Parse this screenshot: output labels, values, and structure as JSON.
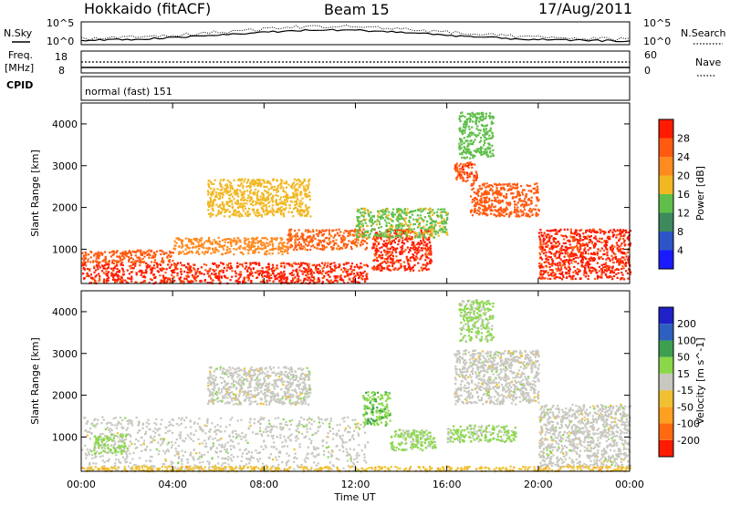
{
  "header": {
    "radar": "Hokkaido (fitACF)",
    "beam": "Beam 15",
    "date": "17/Aug/2011"
  },
  "top_panels": {
    "nsky_label": "N.Sky",
    "nsearch_label": "N.Search",
    "nsky_ticks": [
      "10^5",
      "10^0"
    ],
    "nsearch_ticks": [
      "10^5",
      "10^0"
    ],
    "freq_label": "Freq.",
    "freq_unit": "[MHz]",
    "freq_ticks": [
      "18",
      "8"
    ],
    "nave_label": "Nave",
    "nave_ticks": [
      "60",
      "0"
    ],
    "cpid_label": "CPID",
    "cpid_value": "normal (fast) 151"
  },
  "colors": {
    "power_scale": [
      "#1a1aff",
      "#2d55c8",
      "#3d8a5c",
      "#5fbf4a",
      "#f2b824",
      "#ff8a1f",
      "#ff5a10",
      "#ff1a00"
    ],
    "velocity_scale": [
      "#ff1a00",
      "#ff6a10",
      "#ffa020",
      "#f0c030",
      "#c8c8c0",
      "#8ad84a",
      "#3da050",
      "#2d60c0",
      "#2020c8"
    ]
  },
  "chart_data": [
    {
      "type": "heatmap",
      "name": "power",
      "ylabel": "Slant Range [km]",
      "xlabel": "Time UT",
      "colorbar_label": "Power [dB]",
      "colorbar_ticks": [
        "28",
        "24",
        "20",
        "16",
        "12",
        "8",
        "4"
      ],
      "colorbar_range": [
        0,
        32
      ],
      "x_ticks": [
        "00:00",
        "04:00",
        "08:00",
        "12:00",
        "16:00",
        "20:00",
        "00:00"
      ],
      "x_range_hours": [
        0,
        24
      ],
      "y_ticks": [
        "4000",
        "3000",
        "2000",
        "1000"
      ],
      "y_range_km": [
        180,
        4500
      ],
      "echo_bands": [
        {
          "t0": 0.0,
          "t1": 12.5,
          "r0": 200,
          "r1": 700,
          "level": 29
        },
        {
          "t0": 0.0,
          "t1": 4.0,
          "r0": 700,
          "r1": 1000,
          "level": 26
        },
        {
          "t0": 4.0,
          "t1": 9.0,
          "r0": 900,
          "r1": 1300,
          "level": 22
        },
        {
          "t0": 9.0,
          "t1": 12.5,
          "r0": 1000,
          "r1": 1500,
          "level": 25
        },
        {
          "t0": 12.7,
          "t1": 15.3,
          "r0": 500,
          "r1": 1500,
          "level": 29
        },
        {
          "t0": 16.3,
          "t1": 17.3,
          "r0": 2600,
          "r1": 3100,
          "level": 27
        },
        {
          "t0": 17.0,
          "t1": 20.0,
          "r0": 1800,
          "r1": 2600,
          "level": 26
        },
        {
          "t0": 20.0,
          "t1": 24.0,
          "r0": 300,
          "r1": 1500,
          "level": 29
        },
        {
          "t0": 5.5,
          "t1": 10.0,
          "r0": 1800,
          "r1": 2700,
          "level": 18
        },
        {
          "t0": 12.0,
          "t1": 16.0,
          "r0": 1300,
          "r1": 2000,
          "level": 15
        },
        {
          "t0": 16.5,
          "t1": 18.0,
          "r0": 3200,
          "r1": 4300,
          "level": 14
        }
      ]
    },
    {
      "type": "heatmap",
      "name": "velocity",
      "ylabel": "Slant Range [km]",
      "xlabel": "Time UT",
      "colorbar_label": "Velocity [m s^-1]",
      "colorbar_ticks": [
        "200",
        "100",
        "50",
        "15",
        "-15",
        "-50",
        "-100",
        "-200"
      ],
      "colorbar_range": [
        -250,
        250
      ],
      "x_ticks": [
        "00:00",
        "04:00",
        "08:00",
        "12:00",
        "16:00",
        "20:00",
        "00:00"
      ],
      "x_range_hours": [
        0,
        24
      ],
      "y_ticks": [
        "4000",
        "3000",
        "2000",
        "1000"
      ],
      "y_range_km": [
        180,
        4500
      ],
      "echo_bands": [
        {
          "t0": 0.0,
          "t1": 12.5,
          "r0": 200,
          "r1": 1500,
          "level": 0
        },
        {
          "t0": 0.5,
          "t1": 2.0,
          "r0": 600,
          "r1": 1100,
          "level": 40
        },
        {
          "t0": 5.5,
          "t1": 10.0,
          "r0": 1800,
          "r1": 2700,
          "level": 0
        },
        {
          "t0": 12.3,
          "t1": 13.5,
          "r0": 1300,
          "r1": 2100,
          "level": 70
        },
        {
          "t0": 13.5,
          "t1": 15.5,
          "r0": 700,
          "r1": 1200,
          "level": 45
        },
        {
          "t0": 16.0,
          "t1": 19.0,
          "r0": 900,
          "r1": 1300,
          "level": 40
        },
        {
          "t0": 16.3,
          "t1": 20.0,
          "r0": 1800,
          "r1": 3100,
          "level": 0
        },
        {
          "t0": 20.0,
          "t1": 24.0,
          "r0": 300,
          "r1": 1800,
          "level": 0
        },
        {
          "t0": 0.0,
          "t1": 24.0,
          "r0": 200,
          "r1": 320,
          "level": -60
        },
        {
          "t0": 16.5,
          "t1": 18.0,
          "r0": 3300,
          "r1": 4300,
          "level": 40
        }
      ]
    }
  ]
}
